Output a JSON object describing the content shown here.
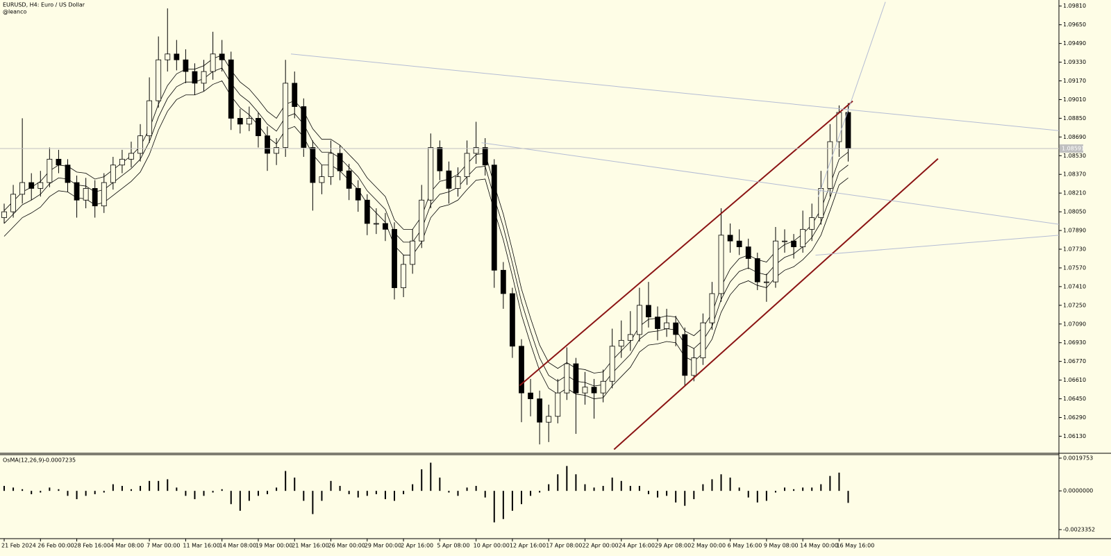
{
  "chart_data": {
    "type": "candlestick",
    "title": "EURUSD, H4:  Euro / US Dollar",
    "subtitle": "@leanco",
    "background": "#fefde6",
    "up_color": "#fefde6",
    "down_color": "#000000",
    "categories": [
      "21 Feb 2024",
      null,
      null,
      null,
      "26 Feb 00:00",
      null,
      null,
      null,
      "28 Feb 16:00",
      null,
      null,
      null,
      "4 Mar 08:00",
      null,
      null,
      null,
      "7 Mar 00:00",
      null,
      null,
      null,
      "11 Mar 16:00",
      null,
      null,
      null,
      "14 Mar 08:00",
      null,
      null,
      null,
      "19 Mar 00:00",
      null,
      null,
      null,
      "21 Mar 16:00",
      null,
      null,
      null,
      "26 Mar 00:00",
      null,
      null,
      null,
      "29 Mar 00:00",
      null,
      null,
      null,
      "2 Apr 16:00",
      null,
      null,
      null,
      "5 Apr 08:00",
      null,
      null,
      null,
      "10 Apr 00:00",
      null,
      null,
      null,
      "12 Apr 16:00",
      null,
      null,
      null,
      "17 Apr 08:00",
      null,
      null,
      null,
      "22 Apr 00:00",
      null,
      null,
      null,
      "24 Apr 16:00",
      null,
      null,
      null,
      "29 Apr 08:00",
      null,
      null,
      null,
      "2 May 00:00",
      null,
      null,
      null,
      "6 May 16:00",
      null,
      null,
      null,
      "9 May 08:00",
      null,
      null,
      null,
      "14 May 00:00",
      null,
      null,
      null,
      "16 May 16:00",
      null
    ],
    "ohlc": [
      [
        1.08,
        1.0812,
        1.0795,
        1.0805
      ],
      [
        1.0805,
        1.0828,
        1.08,
        1.082
      ],
      [
        1.082,
        1.0885,
        1.0812,
        1.083
      ],
      [
        1.083,
        1.0838,
        1.0815,
        1.0825
      ],
      [
        1.0825,
        1.084,
        1.0818,
        1.083
      ],
      [
        1.083,
        1.086,
        1.0826,
        1.085
      ],
      [
        1.085,
        1.0858,
        1.0838,
        1.0845
      ],
      [
        1.0845,
        1.085,
        1.0822,
        1.083
      ],
      [
        1.083,
        1.0836,
        1.08,
        1.0815
      ],
      [
        1.0815,
        1.0834,
        1.0808,
        1.0825
      ],
      [
        1.0825,
        1.0832,
        1.08,
        1.081
      ],
      [
        1.081,
        1.0838,
        1.0804,
        1.083
      ],
      [
        1.083,
        1.0852,
        1.0824,
        1.0845
      ],
      [
        1.0845,
        1.0858,
        1.0838,
        1.085
      ],
      [
        1.085,
        1.0865,
        1.0843,
        1.0855
      ],
      [
        1.0855,
        1.088,
        1.0848,
        1.087
      ],
      [
        1.087,
        1.092,
        1.0864,
        1.09
      ],
      [
        1.09,
        1.0955,
        1.0894,
        1.0935
      ],
      [
        1.0935,
        1.0979,
        1.0925,
        1.094
      ],
      [
        1.094,
        1.0952,
        1.0926,
        1.0935
      ],
      [
        1.0935,
        1.0944,
        1.0915,
        1.0925
      ],
      [
        1.0925,
        1.0932,
        1.0905,
        1.0915
      ],
      [
        1.0915,
        1.0935,
        1.0908,
        1.0925
      ],
      [
        1.0925,
        1.0959,
        1.0918,
        1.094
      ],
      [
        1.094,
        1.0952,
        1.0925,
        1.0935
      ],
      [
        1.0935,
        1.0942,
        1.0875,
        1.0885
      ],
      [
        1.0885,
        1.0893,
        1.0872,
        1.088
      ],
      [
        1.088,
        1.0895,
        1.0874,
        1.0885
      ],
      [
        1.0885,
        1.089,
        1.086,
        1.087
      ],
      [
        1.087,
        1.0878,
        1.084,
        1.0855
      ],
      [
        1.0855,
        1.0868,
        1.0845,
        1.086
      ],
      [
        1.086,
        1.0935,
        1.0852,
        1.0915
      ],
      [
        1.0915,
        1.0925,
        1.0885,
        1.0895
      ],
      [
        1.0895,
        1.0902,
        1.0852,
        1.086
      ],
      [
        1.086,
        1.0866,
        1.0806,
        1.083
      ],
      [
        1.083,
        1.0845,
        1.082,
        1.0835
      ],
      [
        1.0835,
        1.0866,
        1.0828,
        1.0855
      ],
      [
        1.0855,
        1.0862,
        1.0832,
        1.084
      ],
      [
        1.084,
        1.0846,
        1.0815,
        1.0825
      ],
      [
        1.0825,
        1.0832,
        1.0805,
        1.0815
      ],
      [
        1.0815,
        1.082,
        1.0785,
        1.0795
      ],
      [
        1.0795,
        1.0808,
        1.0786,
        1.0795
      ],
      [
        1.0795,
        1.0804,
        1.078,
        1.079
      ],
      [
        1.079,
        1.0796,
        1.073,
        1.074
      ],
      [
        1.074,
        1.0768,
        1.0732,
        1.076
      ],
      [
        1.076,
        1.079,
        1.0752,
        1.078
      ],
      [
        1.078,
        1.0828,
        1.0774,
        1.0815
      ],
      [
        1.0815,
        1.0872,
        1.0808,
        1.086
      ],
      [
        1.086,
        1.0866,
        1.0832,
        1.084
      ],
      [
        1.084,
        1.0848,
        1.0812,
        1.0825
      ],
      [
        1.0825,
        1.0843,
        1.0818,
        1.0835
      ],
      [
        1.0835,
        1.0866,
        1.0828,
        1.0855
      ],
      [
        1.0855,
        1.0882,
        1.0846,
        1.086
      ],
      [
        1.086,
        1.0868,
        1.0836,
        1.0845
      ],
      [
        1.0845,
        1.085,
        1.074,
        1.0755
      ],
      [
        1.0755,
        1.0762,
        1.0722,
        1.0735
      ],
      [
        1.0735,
        1.074,
        1.068,
        1.069
      ],
      [
        1.069,
        1.0696,
        1.0625,
        1.065
      ],
      [
        1.065,
        1.0662,
        1.063,
        1.0645
      ],
      [
        1.0645,
        1.0652,
        1.0606,
        1.0625
      ],
      [
        1.0625,
        1.064,
        1.0608,
        1.063
      ],
      [
        1.063,
        1.0662,
        1.0624,
        1.065
      ],
      [
        1.065,
        1.0689,
        1.0644,
        1.0675
      ],
      [
        1.0675,
        1.068,
        1.0615,
        1.065
      ],
      [
        1.065,
        1.0668,
        1.064,
        1.0655
      ],
      [
        1.0655,
        1.0662,
        1.0628,
        1.065
      ],
      [
        1.065,
        1.067,
        1.0642,
        1.066
      ],
      [
        1.066,
        1.0705,
        1.0654,
        1.069
      ],
      [
        1.069,
        1.0712,
        1.068,
        1.0695
      ],
      [
        1.0695,
        1.072,
        1.0686,
        1.07
      ],
      [
        1.07,
        1.074,
        1.0694,
        1.0725
      ],
      [
        1.0725,
        1.0745,
        1.0706,
        1.0715
      ],
      [
        1.0715,
        1.0724,
        1.0695,
        1.0705
      ],
      [
        1.0705,
        1.0722,
        1.0698,
        1.071
      ],
      [
        1.071,
        1.0716,
        1.069,
        1.07
      ],
      [
        1.07,
        1.0706,
        1.0656,
        1.0665
      ],
      [
        1.0665,
        1.0688,
        1.066,
        1.068
      ],
      [
        1.068,
        1.0718,
        1.0674,
        1.071
      ],
      [
        1.071,
        1.0745,
        1.0704,
        1.0735
      ],
      [
        1.0735,
        1.0808,
        1.0728,
        1.0785
      ],
      [
        1.0785,
        1.0795,
        1.077,
        1.078
      ],
      [
        1.078,
        1.079,
        1.0768,
        1.0775
      ],
      [
        1.0775,
        1.0782,
        1.0756,
        1.0765
      ],
      [
        1.0765,
        1.077,
        1.0738,
        1.0745
      ],
      [
        1.0745,
        1.0752,
        1.0728,
        1.0745
      ],
      [
        1.0745,
        1.0792,
        1.074,
        1.078
      ],
      [
        1.078,
        1.079,
        1.077,
        1.078
      ],
      [
        1.078,
        1.0786,
        1.0765,
        1.0775
      ],
      [
        1.0775,
        1.0806,
        1.077,
        1.079
      ],
      [
        1.079,
        1.0812,
        1.078,
        1.08
      ],
      [
        1.08,
        1.084,
        1.0794,
        1.0825
      ],
      [
        1.0825,
        1.088,
        1.0818,
        1.0865
      ],
      [
        1.0865,
        1.0896,
        1.0852,
        1.089
      ],
      [
        1.089,
        1.0898,
        1.0848,
        1.08591
      ]
    ],
    "ylim": [
      1.0599,
      1.0985
    ],
    "yticks": [
      {
        "value": 1.0981,
        "label": "1.09810"
      },
      {
        "value": 1.0965,
        "label": "1.09650"
      },
      {
        "value": 1.0949,
        "label": "1.09490"
      },
      {
        "value": 1.0933,
        "label": "1.09330"
      },
      {
        "value": 1.0917,
        "label": "1.09170"
      },
      {
        "value": 1.0901,
        "label": "1.09010"
      },
      {
        "value": 1.0885,
        "label": "1.08850"
      },
      {
        "value": 1.0869,
        "label": "1.08690"
      },
      {
        "value": 1.0853,
        "label": "1.08530"
      },
      {
        "value": 1.0837,
        "label": "1.08370"
      },
      {
        "value": 1.0821,
        "label": "1.08210"
      },
      {
        "value": 1.0805,
        "label": "1.08050"
      },
      {
        "value": 1.0789,
        "label": "1.07890"
      },
      {
        "value": 1.0773,
        "label": "1.07730"
      },
      {
        "value": 1.0757,
        "label": "1.07570"
      },
      {
        "value": 1.0741,
        "label": "1.07410"
      },
      {
        "value": 1.0725,
        "label": "1.07250"
      },
      {
        "value": 1.0709,
        "label": "1.07090"
      },
      {
        "value": 1.0693,
        "label": "1.06930"
      },
      {
        "value": 1.0677,
        "label": "1.06770"
      },
      {
        "value": 1.0661,
        "label": "1.06610"
      },
      {
        "value": 1.0645,
        "label": "1.06450"
      },
      {
        "value": 1.0629,
        "label": "1.06290"
      },
      {
        "value": 1.0613,
        "label": "1.06130"
      }
    ],
    "ma_bands": [
      {
        "color": "#000000",
        "values": [
          1.0806,
          1.0814,
          1.0822,
          1.0826,
          1.0831,
          1.084,
          1.0845,
          1.0844,
          1.0839,
          1.0838,
          1.0833,
          1.0835,
          1.0841,
          1.0847,
          1.0853,
          1.0861,
          1.0876,
          1.0897,
          1.0913,
          1.0923,
          1.0927,
          1.0927,
          1.093,
          1.0936,
          1.0939,
          1.0926,
          1.0916,
          1.091,
          1.0901,
          1.0891,
          1.0885,
          1.0897,
          1.09,
          1.0891,
          1.0876,
          1.0867,
          1.0867,
          1.0862,
          1.0854,
          1.0846,
          1.0834,
          1.0826,
          1.0818,
          1.0798,
          1.079,
          1.079,
          1.0801,
          1.0822,
          1.0831,
          1.0833,
          1.0837,
          1.0846,
          1.0854,
          1.0855,
          1.0828,
          1.0803,
          1.0772,
          1.0739,
          1.0714,
          1.0691,
          1.0676,
          1.0671,
          1.0676,
          1.0671,
          1.067,
          1.0667,
          1.0668,
          1.0678,
          1.0686,
          1.0694,
          1.0707,
          1.0713,
          1.0714,
          1.0716,
          1.0715,
          1.0703,
          1.0699,
          1.0706,
          1.0718,
          1.0741,
          1.0756,
          1.0765,
          1.0768,
          1.0764,
          1.0762,
          1.0771,
          1.0777,
          1.078,
          1.0786,
          1.0794,
          1.0807,
          1.0828,
          1.085,
          1.0856
        ]
      },
      {
        "color": "#000000",
        "values": [
          1.0795,
          1.0803,
          1.0811,
          1.0815,
          1.082,
          1.0829,
          1.0834,
          1.0833,
          1.0828,
          1.0827,
          1.0822,
          1.0824,
          1.083,
          1.0836,
          1.0842,
          1.085,
          1.0865,
          1.0886,
          1.0902,
          1.0912,
          1.0916,
          1.0916,
          1.0919,
          1.0925,
          1.0928,
          1.0915,
          1.0905,
          1.0899,
          1.089,
          1.088,
          1.0874,
          1.0886,
          1.0889,
          1.088,
          1.0865,
          1.0856,
          1.0856,
          1.0851,
          1.0843,
          1.0835,
          1.0823,
          1.0815,
          1.0807,
          1.0787,
          1.0779,
          1.0779,
          1.079,
          1.0811,
          1.082,
          1.0822,
          1.0826,
          1.0835,
          1.0843,
          1.0844,
          1.0817,
          1.0792,
          1.0761,
          1.0728,
          1.0703,
          1.068,
          1.0665,
          1.066,
          1.0665,
          1.066,
          1.0659,
          1.0656,
          1.0657,
          1.0667,
          1.0675,
          1.0683,
          1.0696,
          1.0702,
          1.0703,
          1.0705,
          1.0704,
          1.0692,
          1.0688,
          1.0695,
          1.0707,
          1.073,
          1.0745,
          1.0754,
          1.0757,
          1.0753,
          1.0751,
          1.076,
          1.0766,
          1.0769,
          1.0775,
          1.0783,
          1.0796,
          1.0817,
          1.0839,
          1.0845
        ]
      },
      {
        "color": "#000000",
        "values": [
          1.0784,
          1.0792,
          1.08,
          1.0804,
          1.0809,
          1.0818,
          1.0823,
          1.0822,
          1.0817,
          1.0816,
          1.0811,
          1.0813,
          1.0819,
          1.0825,
          1.0831,
          1.0839,
          1.0854,
          1.0875,
          1.0891,
          1.0901,
          1.0905,
          1.0905,
          1.0908,
          1.0914,
          1.0917,
          1.0904,
          1.0894,
          1.0888,
          1.0879,
          1.0869,
          1.0863,
          1.0875,
          1.0878,
          1.0869,
          1.0854,
          1.0845,
          1.0845,
          1.084,
          1.0832,
          1.0824,
          1.0812,
          1.0804,
          1.0796,
          1.0776,
          1.0768,
          1.0768,
          1.0779,
          1.08,
          1.0809,
          1.0811,
          1.0815,
          1.0824,
          1.0832,
          1.0833,
          1.0806,
          1.0781,
          1.075,
          1.0717,
          1.0692,
          1.0669,
          1.0654,
          1.0649,
          1.0654,
          1.0649,
          1.0648,
          1.0645,
          1.0646,
          1.0656,
          1.0664,
          1.0672,
          1.0685,
          1.0691,
          1.0692,
          1.0694,
          1.0693,
          1.0681,
          1.0677,
          1.0684,
          1.0696,
          1.0719,
          1.0734,
          1.0743,
          1.0746,
          1.0742,
          1.074,
          1.0749,
          1.0755,
          1.0758,
          1.0764,
          1.0772,
          1.0785,
          1.0806,
          1.0828,
          1.0834
        ]
      }
    ],
    "trendlines": [
      {
        "color": "#8b1414",
        "width": 2,
        "x": [
          56.8,
          93.5
        ],
        "y": [
          1.06563,
          1.08997
        ]
      },
      {
        "color": "#8b1414",
        "width": 2,
        "x": [
          67.2,
          102.9
        ],
        "y": [
          1.06017,
          1.08504
        ]
      },
      {
        "color": "#b4bcd4",
        "width": 1,
        "x": [
          31.6,
          116.5
        ],
        "y": [
          1.094,
          1.08742
        ]
      },
      {
        "color": "#b4bcd4",
        "width": 1,
        "x": [
          52.6,
          116.5
        ],
        "y": [
          1.08641,
          1.0794
        ]
      },
      {
        "color": "#b4bcd4",
        "width": 1,
        "x": [
          89.4,
          116.5
        ],
        "y": [
          1.07679,
          1.07851
        ]
      },
      {
        "color": "#b4bcd4",
        "width": 1,
        "x": [
          89.7,
          97.1
        ],
        "y": [
          1.08178,
          1.09846
        ]
      }
    ],
    "indicator": {
      "type": "bar",
      "label": "OsMA(12,26,9)",
      "color": "#000000",
      "ylim": [
        -0.00284,
        0.0021
      ],
      "yticks": [
        {
          "value": 0.0019753,
          "label": "0.0019753"
        },
        {
          "value": 0,
          "label": "0.0000000"
        },
        {
          "value": -0.0023352,
          "label": "-0.0023352"
        }
      ],
      "values": [
        0.0003,
        0.0002,
        0.0001,
        -0.0002,
        -0.0001,
        0.0002,
        0.0001,
        -0.0003,
        -0.0005,
        -0.0003,
        -0.0002,
        -0.0001,
        0.0004,
        0.0003,
        0.0001,
        0.0003,
        0.0006,
        0.0006,
        0.0007,
        0.0002,
        -0.0003,
        -0.0005,
        -0.0003,
        -0.0001,
        0.0001,
        -0.0008,
        -0.0012,
        -0.0006,
        -0.0003,
        -0.0002,
        0.0002,
        0.0012,
        0.0008,
        -0.0006,
        -0.0014,
        -0.0006,
        0.0006,
        0.0003,
        -0.0002,
        -0.0004,
        -0.0003,
        -0.0002,
        -0.0005,
        -0.0006,
        -0.0002,
        0.0004,
        0.0013,
        0.0017,
        0.0008,
        -0.0001,
        -0.0003,
        0.0002,
        0.0003,
        -0.0004,
        -0.0019,
        -0.0017,
        -0.0012,
        -0.0008,
        -0.0003,
        -0.0001,
        0.0004,
        0.001,
        0.0015,
        0.001,
        0.0004,
        0.0002,
        0.0003,
        0.0008,
        0.0006,
        0.0003,
        0.0003,
        -0.0002,
        -0.0004,
        -0.0003,
        -0.0007,
        -0.0009,
        -0.0005,
        0.0004,
        0.0007,
        0.001,
        0.0008,
        0.0002,
        -0.0004,
        -0.0007,
        -0.0006,
        -0.0001,
        0.0002,
        0.0001,
        0.0002,
        0.0002,
        0.0004,
        0.0009,
        0.0011,
        -0.0007235
      ]
    }
  }
}
